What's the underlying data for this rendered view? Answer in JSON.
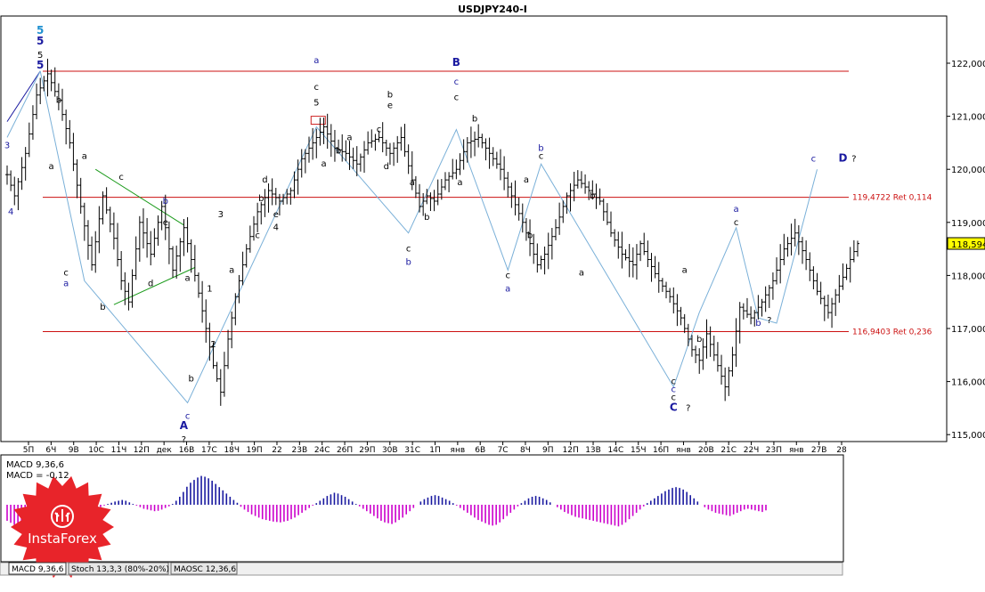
{
  "window_title": "USDJPY240-I",
  "chart_data": {
    "type": "candlestick",
    "symbol": "USDJPY240-I",
    "ylim": [
      114.8,
      122.8
    ],
    "y_ticks": [
      "122,000",
      "121,000",
      "120,000",
      "119,000",
      "118,000",
      "117,000",
      "116,000",
      "115,000"
    ],
    "y_tick_values": [
      122,
      121,
      120,
      119,
      118,
      117,
      116,
      115
    ],
    "current_price": "118,594",
    "current_price_value": 118.594,
    "x_labels": [
      "5П",
      "6Ч",
      "9В",
      "10С",
      "11Ч",
      "12П",
      "дек",
      "16В",
      "17С",
      "18Ч",
      "19П",
      "22",
      "23В",
      "24С",
      "26П",
      "29П",
      "30В",
      "31С",
      "1П",
      "янв",
      "6В",
      "7С",
      "8Ч",
      "9П",
      "12П",
      "13В",
      "14С",
      "15Ч",
      "16П",
      "янв",
      "20В",
      "21С",
      "22Ч",
      "23П",
      "янв",
      "27В",
      "28"
    ],
    "horizontal_levels": [
      {
        "value": 121.85,
        "label": ""
      },
      {
        "value": 119.4722,
        "label": "119,4722 Ret 0,114"
      },
      {
        "value": 116.9403,
        "label": "116,9403 Ret 0,236"
      }
    ],
    "price_path": [
      {
        "i": 0,
        "v": 119.9
      },
      {
        "i": 2,
        "v": 119.5
      },
      {
        "i": 5,
        "v": 120.3
      },
      {
        "i": 8,
        "v": 121.4
      },
      {
        "i": 11,
        "v": 121.8
      },
      {
        "i": 14,
        "v": 121.3
      },
      {
        "i": 17,
        "v": 120.5
      },
      {
        "i": 20,
        "v": 119.3
      },
      {
        "i": 23,
        "v": 118.2
      },
      {
        "i": 26,
        "v": 119.5
      },
      {
        "i": 29,
        "v": 118.7
      },
      {
        "i": 31,
        "v": 117.9
      },
      {
        "i": 33,
        "v": 117.5
      },
      {
        "i": 36,
        "v": 119.0
      },
      {
        "i": 39,
        "v": 118.4
      },
      {
        "i": 42,
        "v": 119.3
      },
      {
        "i": 45,
        "v": 118.1
      },
      {
        "i": 48,
        "v": 118.9
      },
      {
        "i": 51,
        "v": 118.0
      },
      {
        "i": 54,
        "v": 117.0
      },
      {
        "i": 56,
        "v": 116.3
      },
      {
        "i": 58,
        "v": 115.8
      },
      {
        "i": 60,
        "v": 116.8
      },
      {
        "i": 62,
        "v": 117.6
      },
      {
        "i": 65,
        "v": 118.5
      },
      {
        "i": 68,
        "v": 119.2
      },
      {
        "i": 71,
        "v": 119.6
      },
      {
        "i": 74,
        "v": 119.4
      },
      {
        "i": 77,
        "v": 119.6
      },
      {
        "i": 80,
        "v": 120.2
      },
      {
        "i": 83,
        "v": 120.5
      },
      {
        "i": 86,
        "v": 120.8
      },
      {
        "i": 89,
        "v": 120.4
      },
      {
        "i": 92,
        "v": 120.3
      },
      {
        "i": 95,
        "v": 120.1
      },
      {
        "i": 98,
        "v": 120.5
      },
      {
        "i": 101,
        "v": 120.6
      },
      {
        "i": 104,
        "v": 120.3
      },
      {
        "i": 107,
        "v": 120.6
      },
      {
        "i": 110,
        "v": 119.8
      },
      {
        "i": 112,
        "v": 119.3
      },
      {
        "i": 114,
        "v": 119.5
      },
      {
        "i": 116,
        "v": 119.4
      },
      {
        "i": 119,
        "v": 119.8
      },
      {
        "i": 122,
        "v": 120.0
      },
      {
        "i": 125,
        "v": 120.5
      },
      {
        "i": 128,
        "v": 120.6
      },
      {
        "i": 131,
        "v": 120.3
      },
      {
        "i": 134,
        "v": 120.0
      },
      {
        "i": 137,
        "v": 119.5
      },
      {
        "i": 140,
        "v": 119.0
      },
      {
        "i": 142,
        "v": 118.6
      },
      {
        "i": 144,
        "v": 118.2
      },
      {
        "i": 146,
        "v": 118.4
      },
      {
        "i": 149,
        "v": 118.9
      },
      {
        "i": 152,
        "v": 119.5
      },
      {
        "i": 155,
        "v": 119.8
      },
      {
        "i": 158,
        "v": 119.6
      },
      {
        "i": 161,
        "v": 119.4
      },
      {
        "i": 164,
        "v": 118.8
      },
      {
        "i": 167,
        "v": 118.4
      },
      {
        "i": 170,
        "v": 118.2
      },
      {
        "i": 172,
        "v": 118.6
      },
      {
        "i": 174,
        "v": 118.3
      },
      {
        "i": 177,
        "v": 117.9
      },
      {
        "i": 180,
        "v": 117.6
      },
      {
        "i": 183,
        "v": 117.2
      },
      {
        "i": 186,
        "v": 116.6
      },
      {
        "i": 188,
        "v": 116.4
      },
      {
        "i": 190,
        "v": 116.9
      },
      {
        "i": 193,
        "v": 116.3
      },
      {
        "i": 195,
        "v": 115.9
      },
      {
        "i": 197,
        "v": 116.5
      },
      {
        "i": 199,
        "v": 117.4
      },
      {
        "i": 202,
        "v": 117.2
      },
      {
        "i": 205,
        "v": 117.5
      },
      {
        "i": 208,
        "v": 117.9
      },
      {
        "i": 211,
        "v": 118.5
      },
      {
        "i": 214,
        "v": 118.8
      },
      {
        "i": 217,
        "v": 118.3
      },
      {
        "i": 220,
        "v": 117.7
      },
      {
        "i": 223,
        "v": 117.3
      },
      {
        "i": 226,
        "v": 117.8
      },
      {
        "i": 229,
        "v": 118.3
      },
      {
        "i": 231,
        "v": 118.6
      }
    ],
    "n_bars": 232,
    "wave_labels": [
      {
        "text": "5",
        "color": "#1e90d0",
        "i": 9,
        "v": 122.55
      },
      {
        "text": "5",
        "color": "#1a1aa0",
        "i": 9,
        "v": 122.35
      },
      {
        "text": "5",
        "color": "#000000",
        "i": 9,
        "v": 122.1
      },
      {
        "text": "5",
        "color": "#1a1aa0",
        "i": 9,
        "v": 121.9
      },
      {
        "text": "3",
        "color": "#1a1aa0",
        "i": 0,
        "v": 120.4
      },
      {
        "text": "4",
        "color": "#1a1aa0",
        "i": 1,
        "v": 119.15
      },
      {
        "text": "b",
        "color": "#000000",
        "i": 14,
        "v": 121.25
      },
      {
        "text": "a",
        "color": "#000000",
        "i": 12,
        "v": 120.0
      },
      {
        "text": "c",
        "color": "#000000",
        "i": 16,
        "v": 118.0
      },
      {
        "text": "a",
        "color": "#1a1aa0",
        "i": 16,
        "v": 117.8
      },
      {
        "text": "a",
        "color": "#000000",
        "i": 21,
        "v": 120.2
      },
      {
        "text": "c",
        "color": "#000000",
        "i": 31,
        "v": 119.8
      },
      {
        "text": "b",
        "color": "#000000",
        "i": 26,
        "v": 117.35
      },
      {
        "text": "d",
        "color": "#000000",
        "i": 39,
        "v": 117.8
      },
      {
        "text": "b",
        "color": "#1a1aa0",
        "i": 43,
        "v": 119.35
      },
      {
        "text": "e",
        "color": "#000000",
        "i": 43,
        "v": 118.95
      },
      {
        "text": "a",
        "color": "#000000",
        "i": 49,
        "v": 117.9
      },
      {
        "text": "b",
        "color": "#000000",
        "i": 50,
        "v": 116.0
      },
      {
        "text": "c",
        "color": "#1a1aa0",
        "i": 49,
        "v": 115.3
      },
      {
        "text": "A",
        "color": "#1a1aa0",
        "i": 48,
        "v": 115.1
      },
      {
        "text": "?",
        "color": "#000000",
        "i": 48,
        "v": 114.85
      },
      {
        "text": "1",
        "color": "#000000",
        "i": 55,
        "v": 117.7
      },
      {
        "text": "2",
        "color": "#000000",
        "i": 56,
        "v": 116.65
      },
      {
        "text": "3",
        "color": "#000000",
        "i": 58,
        "v": 119.1
      },
      {
        "text": "a",
        "color": "#000000",
        "i": 61,
        "v": 118.05
      },
      {
        "text": "c",
        "color": "#000000",
        "i": 68,
        "v": 118.7
      },
      {
        "text": "b",
        "color": "#000000",
        "i": 69,
        "v": 119.4
      },
      {
        "text": "d",
        "color": "#000000",
        "i": 70,
        "v": 119.75
      },
      {
        "text": "4",
        "color": "#000000",
        "i": 73,
        "v": 118.85
      },
      {
        "text": "e",
        "color": "#000000",
        "i": 73,
        "v": 119.1
      },
      {
        "text": "a",
        "color": "#1a1aa0",
        "i": 84,
        "v": 122.0
      },
      {
        "text": "c",
        "color": "#000000",
        "i": 84,
        "v": 121.5
      },
      {
        "text": "5",
        "color": "#000000",
        "i": 84,
        "v": 121.2
      },
      {
        "text": "a",
        "color": "#000000",
        "i": 86,
        "v": 120.05
      },
      {
        "text": "a",
        "color": "#000000",
        "i": 93,
        "v": 120.55
      },
      {
        "text": "b",
        "color": "#000000",
        "i": 90,
        "v": 120.3
      },
      {
        "text": "c",
        "color": "#000000",
        "i": 101,
        "v": 120.7
      },
      {
        "text": "d",
        "color": "#000000",
        "i": 103,
        "v": 120.0
      },
      {
        "text": "e",
        "color": "#000000",
        "i": 104,
        "v": 121.15
      },
      {
        "text": "b",
        "color": "#000000",
        "i": 104,
        "v": 121.35
      },
      {
        "text": "a",
        "color": "#000000",
        "i": 110,
        "v": 119.7
      },
      {
        "text": "b",
        "color": "#000000",
        "i": 114,
        "v": 119.05
      },
      {
        "text": "c",
        "color": "#000000",
        "i": 109,
        "v": 118.45
      },
      {
        "text": "b",
        "color": "#1a1aa0",
        "i": 109,
        "v": 118.2
      },
      {
        "text": "B",
        "color": "#1a1aa0",
        "i": 122,
        "v": 121.95
      },
      {
        "text": "c",
        "color": "#1a1aa0",
        "i": 122,
        "v": 121.6
      },
      {
        "text": "c",
        "color": "#000000",
        "i": 122,
        "v": 121.3
      },
      {
        "text": "b",
        "color": "#000000",
        "i": 127,
        "v": 120.9
      },
      {
        "text": "a",
        "color": "#000000",
        "i": 123,
        "v": 119.7
      },
      {
        "text": "a",
        "color": "#000000",
        "i": 141,
        "v": 119.75
      },
      {
        "text": "b",
        "color": "#000000",
        "i": 142,
        "v": 118.7
      },
      {
        "text": "c",
        "color": "#000000",
        "i": 136,
        "v": 117.95
      },
      {
        "text": "a",
        "color": "#1a1aa0",
        "i": 136,
        "v": 117.7
      },
      {
        "text": "b",
        "color": "#1a1aa0",
        "i": 145,
        "v": 120.35
      },
      {
        "text": "c",
        "color": "#000000",
        "i": 145,
        "v": 120.2
      },
      {
        "text": "b",
        "color": "#000000",
        "i": 159,
        "v": 119.45
      },
      {
        "text": "a",
        "color": "#000000",
        "i": 156,
        "v": 118.0
      },
      {
        "text": "a",
        "color": "#000000",
        "i": 184,
        "v": 118.05
      },
      {
        "text": "c",
        "color": "#000000",
        "i": 181,
        "v": 115.95
      },
      {
        "text": "c",
        "color": "#1a1aa0",
        "i": 181,
        "v": 115.8
      },
      {
        "text": "c",
        "color": "#000000",
        "i": 181,
        "v": 115.65
      },
      {
        "text": "C",
        "color": "#1a1aa0",
        "i": 181,
        "v": 115.45
      },
      {
        "text": "?",
        "color": "#000000",
        "i": 185,
        "v": 115.45
      },
      {
        "text": "b",
        "color": "#000000",
        "i": 188,
        "v": 116.75
      },
      {
        "text": "a",
        "color": "#1a1aa0",
        "i": 198,
        "v": 119.2
      },
      {
        "text": "c",
        "color": "#000000",
        "i": 198,
        "v": 118.95
      },
      {
        "text": "b",
        "color": "#1a1aa0",
        "i": 204,
        "v": 117.05
      },
      {
        "text": "?",
        "color": "#000000",
        "i": 207,
        "v": 117.1
      },
      {
        "text": "c",
        "color": "#1a1aa0",
        "i": 219,
        "v": 120.15
      },
      {
        "text": "D",
        "color": "#1a1aa0",
        "i": 227,
        "v": 120.15
      },
      {
        "text": "?",
        "color": "#000000",
        "i": 230,
        "v": 120.15
      }
    ],
    "wave_lines": [
      {
        "color": "#1a1aa0",
        "points": [
          [
            0,
            120.9
          ],
          [
            9,
            121.85
          ]
        ]
      },
      {
        "color": "#7ab0d8",
        "points": [
          [
            0,
            120.6
          ],
          [
            9,
            121.85
          ]
        ]
      },
      {
        "color": "#7ab0d8",
        "points": [
          [
            9,
            121.85
          ],
          [
            21,
            117.9
          ],
          [
            49,
            115.6
          ],
          [
            84,
            120.8
          ],
          [
            109,
            118.8
          ],
          [
            122,
            120.75
          ],
          [
            136,
            118.1
          ],
          [
            145,
            120.1
          ],
          [
            181,
            115.9
          ],
          [
            188,
            117.3
          ],
          [
            198,
            118.9
          ],
          [
            204,
            117.2
          ],
          [
            209,
            117.1
          ],
          [
            220,
            120.0
          ]
        ]
      }
    ],
    "triangle_lines": [
      {
        "color": "#1a9a1a",
        "points": [
          [
            24,
            120.0
          ],
          [
            48,
            118.95
          ]
        ]
      },
      {
        "color": "#1a9a1a",
        "points": [
          [
            29,
            117.45
          ],
          [
            51,
            118.15
          ]
        ]
      }
    ],
    "marker_box": {
      "i": 84,
      "v_top": 121.0,
      "v_bottom": 120.85,
      "color": "#cc2222"
    },
    "macd": {
      "label_line1": "MACD 9,36,6",
      "label_line2": "MACD = -0,12",
      "hist": [
        -0.4,
        -0.45,
        -0.5,
        -0.55,
        -0.6,
        -0.65,
        -0.7,
        -0.72,
        -0.74,
        -0.7,
        -0.65,
        -0.6,
        -0.55,
        -0.5,
        -0.45,
        -0.42,
        -0.4,
        -0.38,
        -0.35,
        -0.32,
        -0.3,
        -0.28,
        -0.25,
        -0.2,
        -0.15,
        -0.1,
        -0.06,
        -0.02,
        0.02,
        0.05,
        0.08,
        0.1,
        0.12,
        0.1,
        0.06,
        0.02,
        -0.02,
        -0.06,
        -0.1,
        -0.12,
        -0.14,
        -0.16,
        -0.15,
        -0.12,
        -0.08,
        -0.04,
        0.02,
        0.1,
        0.2,
        0.32,
        0.45,
        0.55,
        0.62,
        0.68,
        0.72,
        0.7,
        0.66,
        0.6,
        0.52,
        0.44,
        0.36,
        0.28,
        0.2,
        0.12,
        0.05,
        -0.05,
        -0.12,
        -0.18,
        -0.24,
        -0.28,
        -0.32,
        -0.36,
        -0.38,
        -0.4,
        -0.42,
        -0.43,
        -0.44,
        -0.42,
        -0.4,
        -0.36,
        -0.32,
        -0.26,
        -0.2,
        -0.14,
        -0.08,
        -0.02,
        0.04,
        0.1,
        0.16,
        0.22,
        0.26,
        0.3,
        0.28,
        0.24,
        0.2,
        0.14,
        0.08,
        0.02,
        -0.04,
        -0.1,
        -0.16,
        -0.22,
        -0.28,
        -0.34,
        -0.4,
        -0.44,
        -0.46,
        -0.48,
        -0.44,
        -0.38,
        -0.32,
        -0.24,
        -0.16,
        -0.08,
        0.0,
        0.08,
        0.14,
        0.18,
        0.22,
        0.24,
        0.22,
        0.18,
        0.14,
        0.1,
        0.04,
        -0.02,
        -0.08,
        -0.14,
        -0.2,
        -0.26,
        -0.32,
        -0.38,
        -0.42,
        -0.46,
        -0.5,
        -0.52,
        -0.5,
        -0.44,
        -0.36,
        -0.28,
        -0.2,
        -0.12,
        -0.04,
        0.04,
        0.1,
        0.16,
        0.2,
        0.22,
        0.2,
        0.16,
        0.12,
        0.06,
        0.0,
        -0.06,
        -0.12,
        -0.18,
        -0.22,
        -0.26,
        -0.3,
        -0.32,
        -0.34,
        -0.36,
        -0.38,
        -0.4,
        -0.42,
        -0.44,
        -0.46,
        -0.48,
        -0.5,
        -0.52,
        -0.54,
        -0.5,
        -0.44,
        -0.36,
        -0.28,
        -0.2,
        -0.12,
        -0.04,
        0.04,
        0.1,
        0.16,
        0.22,
        0.28,
        0.34,
        0.38,
        0.42,
        0.44,
        0.42,
        0.38,
        0.32,
        0.24,
        0.16,
        0.08,
        0.0,
        -0.06,
        -0.12,
        -0.16,
        -0.2,
        -0.22,
        -0.24,
        -0.26,
        -0.28,
        -0.24,
        -0.2,
        -0.16,
        -0.12,
        -0.1,
        -0.12,
        -0.14,
        -0.16,
        -0.18,
        -0.14
      ],
      "positive_color": "#1a1aa0",
      "negative_color": "#cc00cc"
    }
  },
  "bottom_tabs": [
    "MACD 9,36,6",
    "Stoch 13,3,3 (80%-20%)",
    "MAOSC 12,36,6"
  ],
  "logo": {
    "brand": "InstaForex",
    "color": "#e8242a"
  },
  "colors": {
    "level_line": "#cc1111",
    "grid_text": "#000000",
    "price_tag_bg": "#ffff00"
  }
}
